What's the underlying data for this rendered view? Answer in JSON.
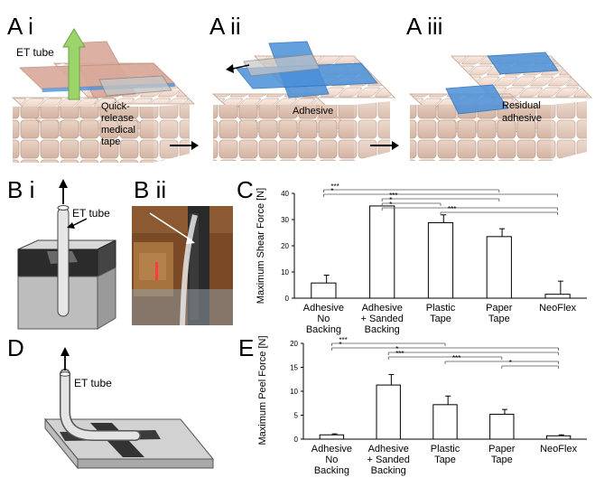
{
  "panels": {
    "a_i": "A i",
    "a_ii": "A ii",
    "a_iii": "A iii",
    "b_i": "B i",
    "b_ii": "B ii",
    "c": "C",
    "d": "D",
    "e": "E"
  },
  "labels": {
    "et_tube": "ET tube",
    "quick_release": [
      "Quick-",
      "release",
      "medical",
      "tape"
    ],
    "adhesive": "Adhesive",
    "residual": [
      "Residual",
      "adhesive"
    ]
  },
  "colors": {
    "tape": "#d9a99a",
    "adhesive": "#4a90d9",
    "skin": "#f3ddd0",
    "arrow": "#9bd46a"
  },
  "chart_data": [
    {
      "type": "bar",
      "panel": "C",
      "ylabel": "Maximum Shear Force [N]",
      "ylim": [
        0,
        40
      ],
      "yticks": [
        0,
        10,
        20,
        30,
        40
      ],
      "categories": [
        [
          "Adhesive",
          "No",
          "Backing"
        ],
        [
          "Adhesive",
          "+ Sanded",
          "Backing"
        ],
        [
          "Plastic",
          "Tape"
        ],
        [
          "Paper",
          "Tape"
        ],
        [
          "NeoFlex"
        ]
      ],
      "values": [
        5.8,
        35.2,
        28.8,
        23.5,
        1.5
      ],
      "errors": [
        3.0,
        0,
        3.0,
        3.0,
        5.0
      ],
      "significance": [
        {
          "from": 0,
          "to": 3,
          "label": "***"
        },
        {
          "from": 0,
          "to": 4,
          "label": "*"
        },
        {
          "from": 1,
          "to": 3,
          "label": "***"
        },
        {
          "from": 1,
          "to": 2,
          "label": "*"
        },
        {
          "from": 1,
          "to": 4,
          "label": "*"
        },
        {
          "from": 2,
          "to": 4,
          "label": "***"
        }
      ]
    },
    {
      "type": "bar",
      "panel": "E",
      "ylabel": "Maximum Peel Force [N]",
      "ylim": [
        0,
        20
      ],
      "yticks": [
        0,
        5,
        10,
        15,
        20
      ],
      "categories": [
        [
          "Adhesive",
          "No",
          "Backing"
        ],
        [
          "Adhesive",
          "+ Sanded",
          "Backing"
        ],
        [
          "Plastic",
          "Tape"
        ],
        [
          "Paper",
          "Tape"
        ],
        [
          "NeoFlex"
        ]
      ],
      "values": [
        0.9,
        11.3,
        7.2,
        5.2,
        0.7
      ],
      "errors": [
        0.2,
        2.2,
        1.8,
        1.0,
        0.2
      ],
      "significance": [
        {
          "from": 0,
          "to": 2,
          "label": "***"
        },
        {
          "from": 0,
          "to": 4,
          "label": "*"
        },
        {
          "from": 1,
          "to": 4,
          "label": "*"
        },
        {
          "from": 1,
          "to": 3,
          "label": "***"
        },
        {
          "from": 2,
          "to": 4,
          "label": "***"
        },
        {
          "from": 3,
          "to": 4,
          "label": "*"
        }
      ]
    }
  ]
}
